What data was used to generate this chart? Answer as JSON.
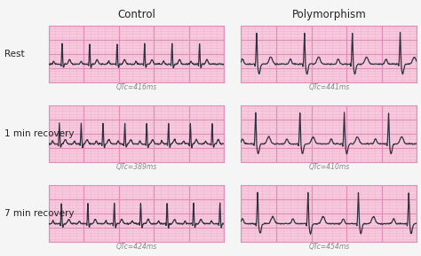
{
  "col_labels": [
    "Control",
    "Polymorphism"
  ],
  "row_labels": [
    "Rest",
    "1 min recovery",
    "7 min recovery"
  ],
  "captions": [
    [
      "QTc=416ms",
      "QTc=441ms"
    ],
    [
      "QTc=389ms",
      "QTc=410ms"
    ],
    [
      "QTc=424ms",
      "QTc=454ms"
    ]
  ],
  "bg_color": "#f5f5f5",
  "panel_bg": "#f8c8dc",
  "grid_major_color": "#e090b8",
  "grid_minor_color": "#edb8d0",
  "trace_color": "#303040",
  "caption_color": "#888888",
  "caption_fontsize": 5.5,
  "row_label_fontsize": 7.5,
  "col_label_fontsize": 8.5,
  "fig_width": 4.74,
  "fig_height": 2.89
}
